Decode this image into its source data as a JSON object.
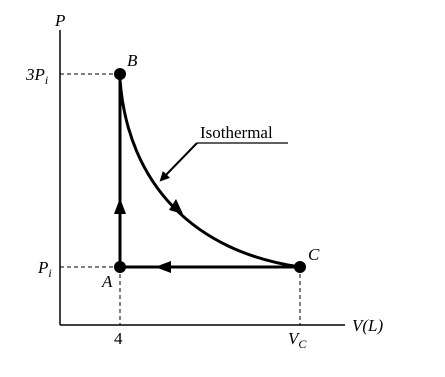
{
  "axes": {
    "y_label": "P",
    "x_label": "V(L)"
  },
  "y_ticks": [
    {
      "main": "3P",
      "sub": "i"
    },
    {
      "main": "P",
      "sub": "i"
    }
  ],
  "x_ticks": [
    {
      "main": "4"
    },
    {
      "main": "V",
      "sub": "C"
    }
  ],
  "points": [
    {
      "label": "A"
    },
    {
      "label": "B"
    },
    {
      "label": "C"
    }
  ],
  "annotation": "Isothermal"
}
